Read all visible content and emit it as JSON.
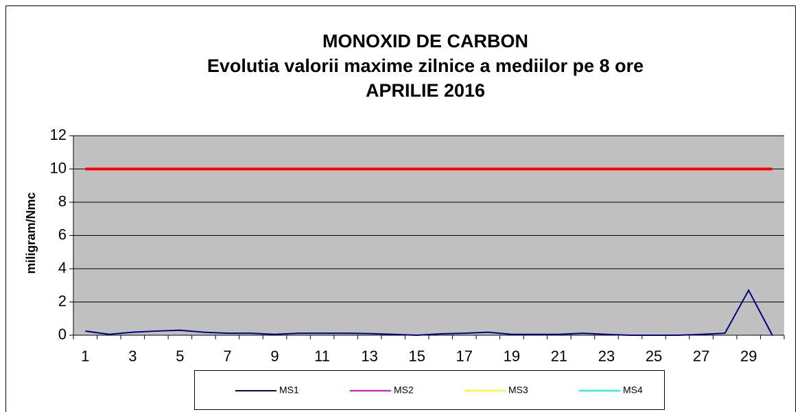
{
  "chart_data": {
    "type": "line",
    "title": [
      "MONOXID DE CARBON",
      "Evolutia valorii maxime zilnice a mediilor pe 8 ore",
      "APRILIE 2016"
    ],
    "ylabel": "miligram/Nmc",
    "categories": [
      "1",
      null,
      "3",
      null,
      "5",
      null,
      "7",
      null,
      "9",
      null,
      "11",
      null,
      "13",
      null,
      "15",
      null,
      "17",
      null,
      "19",
      null,
      "21",
      null,
      "23",
      null,
      "25",
      null,
      "27",
      null,
      "29",
      null
    ],
    "series": [
      {
        "name": "MS1",
        "color": "#000080",
        "values": [
          0.25,
          0.05,
          0.18,
          0.25,
          0.3,
          0.18,
          0.12,
          0.12,
          0.05,
          0.12,
          0.12,
          0.12,
          0.1,
          0.05,
          0.0,
          0.08,
          0.12,
          0.18,
          0.05,
          0.05,
          0.05,
          0.12,
          0.05,
          0.0,
          0.0,
          0.0,
          0.05,
          0.12,
          2.7,
          0.0
        ]
      },
      {
        "name": "MS2",
        "color": "#ff00ff",
        "values": [
          null,
          null,
          null,
          null,
          null,
          null,
          null,
          null,
          null,
          null,
          null,
          null,
          null,
          null,
          null,
          null,
          null,
          null,
          null,
          null,
          null,
          null,
          null,
          null,
          null,
          null,
          null,
          null,
          null,
          null
        ]
      },
      {
        "name": "MS3",
        "color": "#ffff00",
        "values": [
          null,
          null,
          null,
          null,
          null,
          null,
          null,
          null,
          null,
          null,
          null,
          null,
          null,
          null,
          null,
          null,
          null,
          null,
          null,
          null,
          null,
          null,
          null,
          null,
          null,
          null,
          null,
          null,
          null,
          null
        ]
      },
      {
        "name": "MS4",
        "color": "#00ffff",
        "values": [
          null,
          null,
          null,
          null,
          null,
          null,
          null,
          null,
          null,
          null,
          null,
          null,
          null,
          null,
          null,
          null,
          null,
          null,
          null,
          null,
          null,
          null,
          null,
          null,
          null,
          null,
          null,
          null,
          null,
          null
        ]
      }
    ],
    "limit": {
      "value": 10,
      "color": "#ff0000"
    },
    "ylim": [
      0,
      12
    ],
    "yticks": [
      0,
      2,
      4,
      6,
      8,
      10,
      12
    ],
    "grid": true,
    "plot_background": "#c0c0c0",
    "legend": "bottom"
  }
}
